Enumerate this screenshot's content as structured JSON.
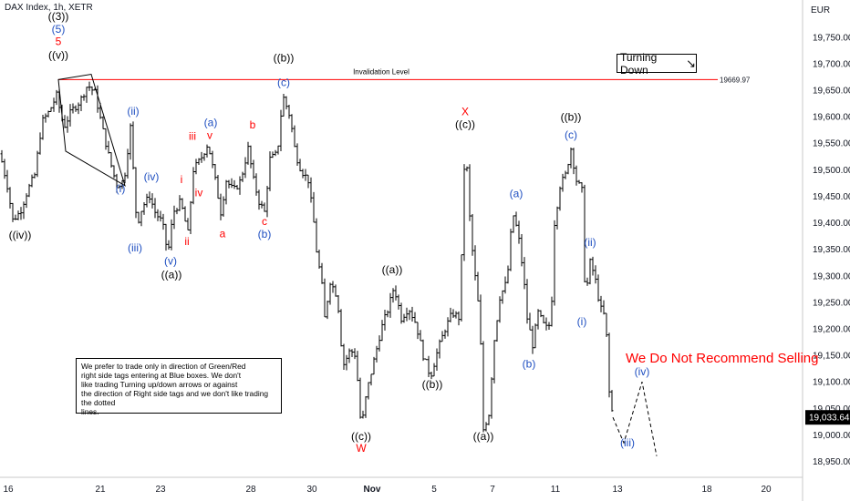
{
  "header": {
    "symbol_label": "DAX Index, 1h, XETR",
    "currency": "EUR"
  },
  "colors": {
    "bar": "#000000",
    "invalidation": "#ff0000",
    "blue_label": "#1f4fc1",
    "red_label": "#ff0000",
    "black_label": "#000000",
    "grid_text": "#131722"
  },
  "chart_data": {
    "type": "bar",
    "ylim": [
      18920,
      19820
    ],
    "y_ticks": [
      "19,750.00",
      "19,700.00",
      "19,650.00",
      "19,600.00",
      "19,550.00",
      "19,500.00",
      "19,450.00",
      "19,400.00",
      "19,350.00",
      "19,300.00",
      "19,250.00",
      "19,200.00",
      "19,150.00",
      "19,100.00",
      "19,050.00",
      "19,000.00",
      "18,950.00"
    ],
    "x_ticks": [
      "16",
      "21",
      "23",
      "28",
      "30",
      "Nov",
      "5",
      "7",
      "11",
      "13",
      "18",
      "20"
    ],
    "last_price_label": "19,033.64",
    "invalidation_level": {
      "label": "Invalidation Level",
      "value": 19669.97,
      "value_label": "19669.97"
    },
    "price_path": [
      {
        "t": 0,
        "p": 19530
      },
      {
        "t": 8,
        "p": 19470
      },
      {
        "t": 14,
        "p": 19405
      },
      {
        "t": 22,
        "p": 19420
      },
      {
        "t": 30,
        "p": 19460
      },
      {
        "t": 38,
        "p": 19490
      },
      {
        "t": 46,
        "p": 19590
      },
      {
        "t": 54,
        "p": 19610
      },
      {
        "t": 62,
        "p": 19640
      },
      {
        "t": 70,
        "p": 19580
      },
      {
        "t": 78,
        "p": 19610
      },
      {
        "t": 88,
        "p": 19630
      },
      {
        "t": 96,
        "p": 19660
      },
      {
        "t": 104,
        "p": 19645
      },
      {
        "t": 112,
        "p": 19580
      },
      {
        "t": 120,
        "p": 19520
      },
      {
        "t": 128,
        "p": 19470
      },
      {
        "t": 136,
        "p": 19480
      },
      {
        "t": 143,
        "p": 19580
      },
      {
        "t": 150,
        "p": 19395
      },
      {
        "t": 156,
        "p": 19430
      },
      {
        "t": 164,
        "p": 19450
      },
      {
        "t": 170,
        "p": 19420
      },
      {
        "t": 178,
        "p": 19400
      },
      {
        "t": 184,
        "p": 19340
      },
      {
        "t": 190,
        "p": 19420
      },
      {
        "t": 198,
        "p": 19440
      },
      {
        "t": 206,
        "p": 19380
      },
      {
        "t": 212,
        "p": 19500
      },
      {
        "t": 220,
        "p": 19520
      },
      {
        "t": 228,
        "p": 19550
      },
      {
        "t": 236,
        "p": 19480
      },
      {
        "t": 242,
        "p": 19420
      },
      {
        "t": 248,
        "p": 19480
      },
      {
        "t": 256,
        "p": 19460
      },
      {
        "t": 264,
        "p": 19480
      },
      {
        "t": 272,
        "p": 19540
      },
      {
        "t": 278,
        "p": 19480
      },
      {
        "t": 284,
        "p": 19440
      },
      {
        "t": 290,
        "p": 19420
      },
      {
        "t": 296,
        "p": 19520
      },
      {
        "t": 304,
        "p": 19530
      },
      {
        "t": 310,
        "p": 19640
      },
      {
        "t": 318,
        "p": 19600
      },
      {
        "t": 324,
        "p": 19530
      },
      {
        "t": 330,
        "p": 19500
      },
      {
        "t": 338,
        "p": 19480
      },
      {
        "t": 344,
        "p": 19400
      },
      {
        "t": 348,
        "p": 19330
      },
      {
        "t": 352,
        "p": 19300
      },
      {
        "t": 356,
        "p": 19220
      },
      {
        "t": 362,
        "p": 19290
      },
      {
        "t": 370,
        "p": 19260
      },
      {
        "t": 376,
        "p": 19130
      },
      {
        "t": 384,
        "p": 19160
      },
      {
        "t": 390,
        "p": 19150
      },
      {
        "t": 396,
        "p": 19010
      },
      {
        "t": 402,
        "p": 19080
      },
      {
        "t": 410,
        "p": 19140
      },
      {
        "t": 418,
        "p": 19200
      },
      {
        "t": 426,
        "p": 19240
      },
      {
        "t": 432,
        "p": 19280
      },
      {
        "t": 440,
        "p": 19220
      },
      {
        "t": 448,
        "p": 19240
      },
      {
        "t": 456,
        "p": 19210
      },
      {
        "t": 464,
        "p": 19150
      },
      {
        "t": 472,
        "p": 19110
      },
      {
        "t": 480,
        "p": 19160
      },
      {
        "t": 488,
        "p": 19200
      },
      {
        "t": 496,
        "p": 19230
      },
      {
        "t": 504,
        "p": 19220
      },
      {
        "t": 510,
        "p": 19560
      },
      {
        "t": 516,
        "p": 19380
      },
      {
        "t": 522,
        "p": 19280
      },
      {
        "t": 526,
        "p": 19220
      },
      {
        "t": 530,
        "p": 19010
      },
      {
        "t": 536,
        "p": 19040
      },
      {
        "t": 542,
        "p": 19180
      },
      {
        "t": 548,
        "p": 19260
      },
      {
        "t": 556,
        "p": 19290
      },
      {
        "t": 562,
        "p": 19420
      },
      {
        "t": 568,
        "p": 19380
      },
      {
        "t": 574,
        "p": 19300
      },
      {
        "t": 578,
        "p": 19220
      },
      {
        "t": 584,
        "p": 19170
      },
      {
        "t": 590,
        "p": 19230
      },
      {
        "t": 598,
        "p": 19200
      },
      {
        "t": 604,
        "p": 19210
      },
      {
        "t": 608,
        "p": 19400
      },
      {
        "t": 614,
        "p": 19470
      },
      {
        "t": 620,
        "p": 19490
      },
      {
        "t": 626,
        "p": 19540
      },
      {
        "t": 632,
        "p": 19480
      },
      {
        "t": 638,
        "p": 19460
      },
      {
        "t": 642,
        "p": 19240
      },
      {
        "t": 646,
        "p": 19330
      },
      {
        "t": 652,
        "p": 19300
      },
      {
        "t": 658,
        "p": 19240
      },
      {
        "t": 664,
        "p": 19220
      },
      {
        "t": 668,
        "p": 19080
      },
      {
        "t": 672,
        "p": 19033
      }
    ],
    "projection": [
      {
        "t": 672,
        "p": 19033
      },
      {
        "t": 684,
        "p": 18985
      },
      {
        "t": 704,
        "p": 19100
      },
      {
        "t": 720,
        "p": 18960
      }
    ],
    "wedge": [
      {
        "t": 64,
        "p": 19670
      },
      {
        "t": 100,
        "p": 19680
      },
      {
        "t": 137,
        "p": 19470
      },
      {
        "t": 72,
        "p": 19535
      }
    ],
    "wave_labels": [
      {
        "text": "((3))",
        "t": 64,
        "p": 19782,
        "color": "black"
      },
      {
        "text": "(5)",
        "t": 64,
        "p": 19758,
        "color": "blue"
      },
      {
        "text": "5",
        "t": 64,
        "p": 19735,
        "color": "red"
      },
      {
        "text": "((v))",
        "t": 64,
        "p": 19709,
        "color": "black"
      },
      {
        "text": "((iv))",
        "t": 22,
        "p": 19370,
        "color": "black"
      },
      {
        "text": "(i)",
        "t": 132,
        "p": 19458,
        "color": "blue"
      },
      {
        "text": "(ii)",
        "t": 146,
        "p": 19604,
        "color": "blue"
      },
      {
        "text": "(iii)",
        "t": 148,
        "p": 19346,
        "color": "blue"
      },
      {
        "text": "(iv)",
        "t": 166,
        "p": 19480,
        "color": "blue"
      },
      {
        "text": "(v)",
        "t": 187,
        "p": 19321,
        "color": "blue"
      },
      {
        "text": "((a))",
        "t": 188,
        "p": 19295,
        "color": "black"
      },
      {
        "text": "i",
        "t": 199,
        "p": 19475,
        "color": "red"
      },
      {
        "text": "ii",
        "t": 205,
        "p": 19358,
        "color": "red"
      },
      {
        "text": "iii",
        "t": 211,
        "p": 19556,
        "color": "red"
      },
      {
        "text": "iv",
        "t": 218,
        "p": 19450,
        "color": "red"
      },
      {
        "text": "v",
        "t": 230,
        "p": 19558,
        "color": "red"
      },
      {
        "text": "(a)",
        "t": 231,
        "p": 19582,
        "color": "blue"
      },
      {
        "text": "a",
        "t": 244,
        "p": 19373,
        "color": "red"
      },
      {
        "text": "b",
        "t": 277,
        "p": 19578,
        "color": "red"
      },
      {
        "text": "c",
        "t": 290,
        "p": 19396,
        "color": "red"
      },
      {
        "text": "(b)",
        "t": 290,
        "p": 19372,
        "color": "blue"
      },
      {
        "text": "((b))",
        "t": 311,
        "p": 19704,
        "color": "black"
      },
      {
        "text": "(c)",
        "t": 311,
        "p": 19658,
        "color": "blue"
      },
      {
        "text": "Invalidation Level",
        "t": 418,
        "p": 19680,
        "color": "black"
      },
      {
        "text": "((c))",
        "t": 396,
        "p": 18990,
        "color": "black"
      },
      {
        "text": "W",
        "t": 396,
        "p": 18968,
        "color": "red"
      },
      {
        "text": "((a))",
        "t": 430,
        "p": 19305,
        "color": "black"
      },
      {
        "text": "((b))",
        "t": 474,
        "p": 19088,
        "color": "black"
      },
      {
        "text": "X",
        "t": 510,
        "p": 19603,
        "color": "red"
      },
      {
        "text": "((c))",
        "t": 510,
        "p": 19579,
        "color": "black"
      },
      {
        "text": "((a))",
        "t": 530,
        "p": 18990,
        "color": "black"
      },
      {
        "text": "(a)",
        "t": 566,
        "p": 19448,
        "color": "blue"
      },
      {
        "text": "(b)",
        "t": 580,
        "p": 19127,
        "color": "blue"
      },
      {
        "text": "((b))",
        "t": 626,
        "p": 19592,
        "color": "black"
      },
      {
        "text": "(c)",
        "t": 626,
        "p": 19559,
        "color": "blue"
      },
      {
        "text": "(i)",
        "t": 638,
        "p": 19207,
        "color": "blue"
      },
      {
        "text": "(ii)",
        "t": 647,
        "p": 19356,
        "color": "blue"
      },
      {
        "text": "(iii)",
        "t": 688,
        "p": 18978,
        "color": "blue"
      },
      {
        "text": "(iv)",
        "t": 704,
        "p": 19112,
        "color": "blue"
      }
    ]
  },
  "annotations": {
    "turning_down": "Turning Down",
    "warning": "We Do Not Recommend Selling",
    "note": "We prefer to trade only in direction of Green/Red\nright side tags entering at Blue boxes. We don't\nlike trading Turning up/down arrows or against\nthe direction of Right side tags and we don't like trading the dotted\nlines."
  }
}
